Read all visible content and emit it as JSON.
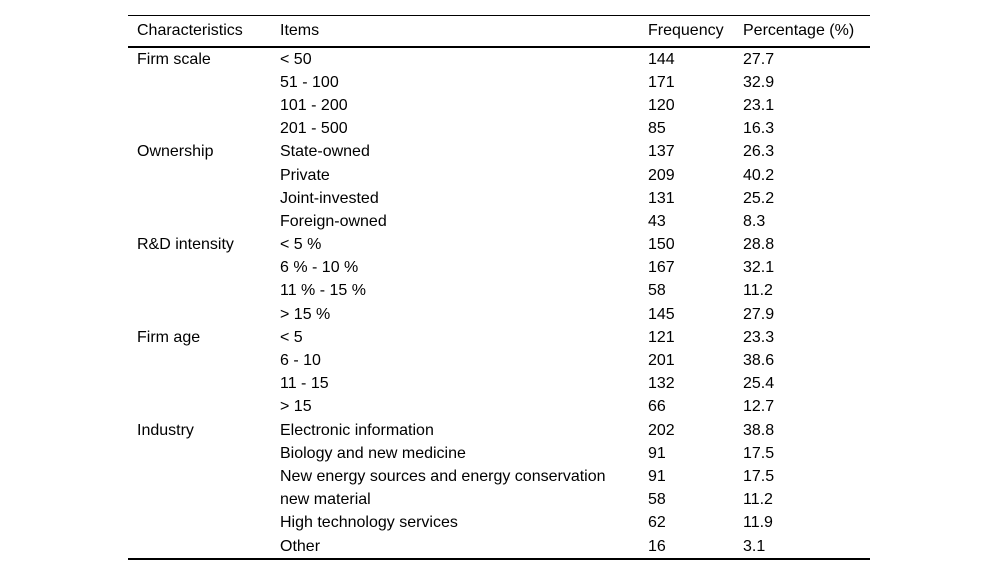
{
  "table": {
    "columns": [
      "Characteristics",
      "Items",
      "Frequency",
      "Percentage (%)"
    ],
    "groups": [
      {
        "characteristic": "Firm scale",
        "rows": [
          [
            "< 50",
            "144",
            "27.7"
          ],
          [
            "51 - 100",
            "171",
            "32.9"
          ],
          [
            "101 - 200",
            "120",
            "23.1"
          ],
          [
            "201 - 500",
            "85",
            "16.3"
          ]
        ]
      },
      {
        "characteristic": "Ownership",
        "rows": [
          [
            "State-owned",
            "137",
            "26.3"
          ],
          [
            "Private",
            "209",
            "40.2"
          ],
          [
            "Joint-invested",
            "131",
            "25.2"
          ],
          [
            "Foreign-owned",
            "43",
            "8.3"
          ]
        ]
      },
      {
        "characteristic": "R&D intensity",
        "rows": [
          [
            "< 5 %",
            "150",
            "28.8"
          ],
          [
            "6 % - 10 %",
            "167",
            "32.1"
          ],
          [
            "11 % - 15 %",
            "58",
            "11.2"
          ],
          [
            "> 15 %",
            "145",
            "27.9"
          ]
        ]
      },
      {
        "characteristic": "Firm age",
        "rows": [
          [
            "< 5",
            "121",
            "23.3"
          ],
          [
            "6 - 10",
            "201",
            "38.6"
          ],
          [
            "11 - 15",
            "132",
            "25.4"
          ],
          [
            "> 15",
            "66",
            "12.7"
          ]
        ]
      },
      {
        "characteristic": "Industry",
        "rows": [
          [
            "Electronic information",
            "202",
            "38.8"
          ],
          [
            "Biology and new medicine",
            "91",
            "17.5"
          ],
          [
            "New energy sources and energy conservation",
            "91",
            "17.5"
          ],
          [
            "new material",
            "58",
            "11.2"
          ],
          [
            "High technology services",
            "62",
            "11.9"
          ],
          [
            "Other",
            "16",
            "3.1"
          ]
        ]
      }
    ]
  },
  "colors": {
    "text": "#000000",
    "rule": "#000000",
    "background": "#ffffff"
  }
}
